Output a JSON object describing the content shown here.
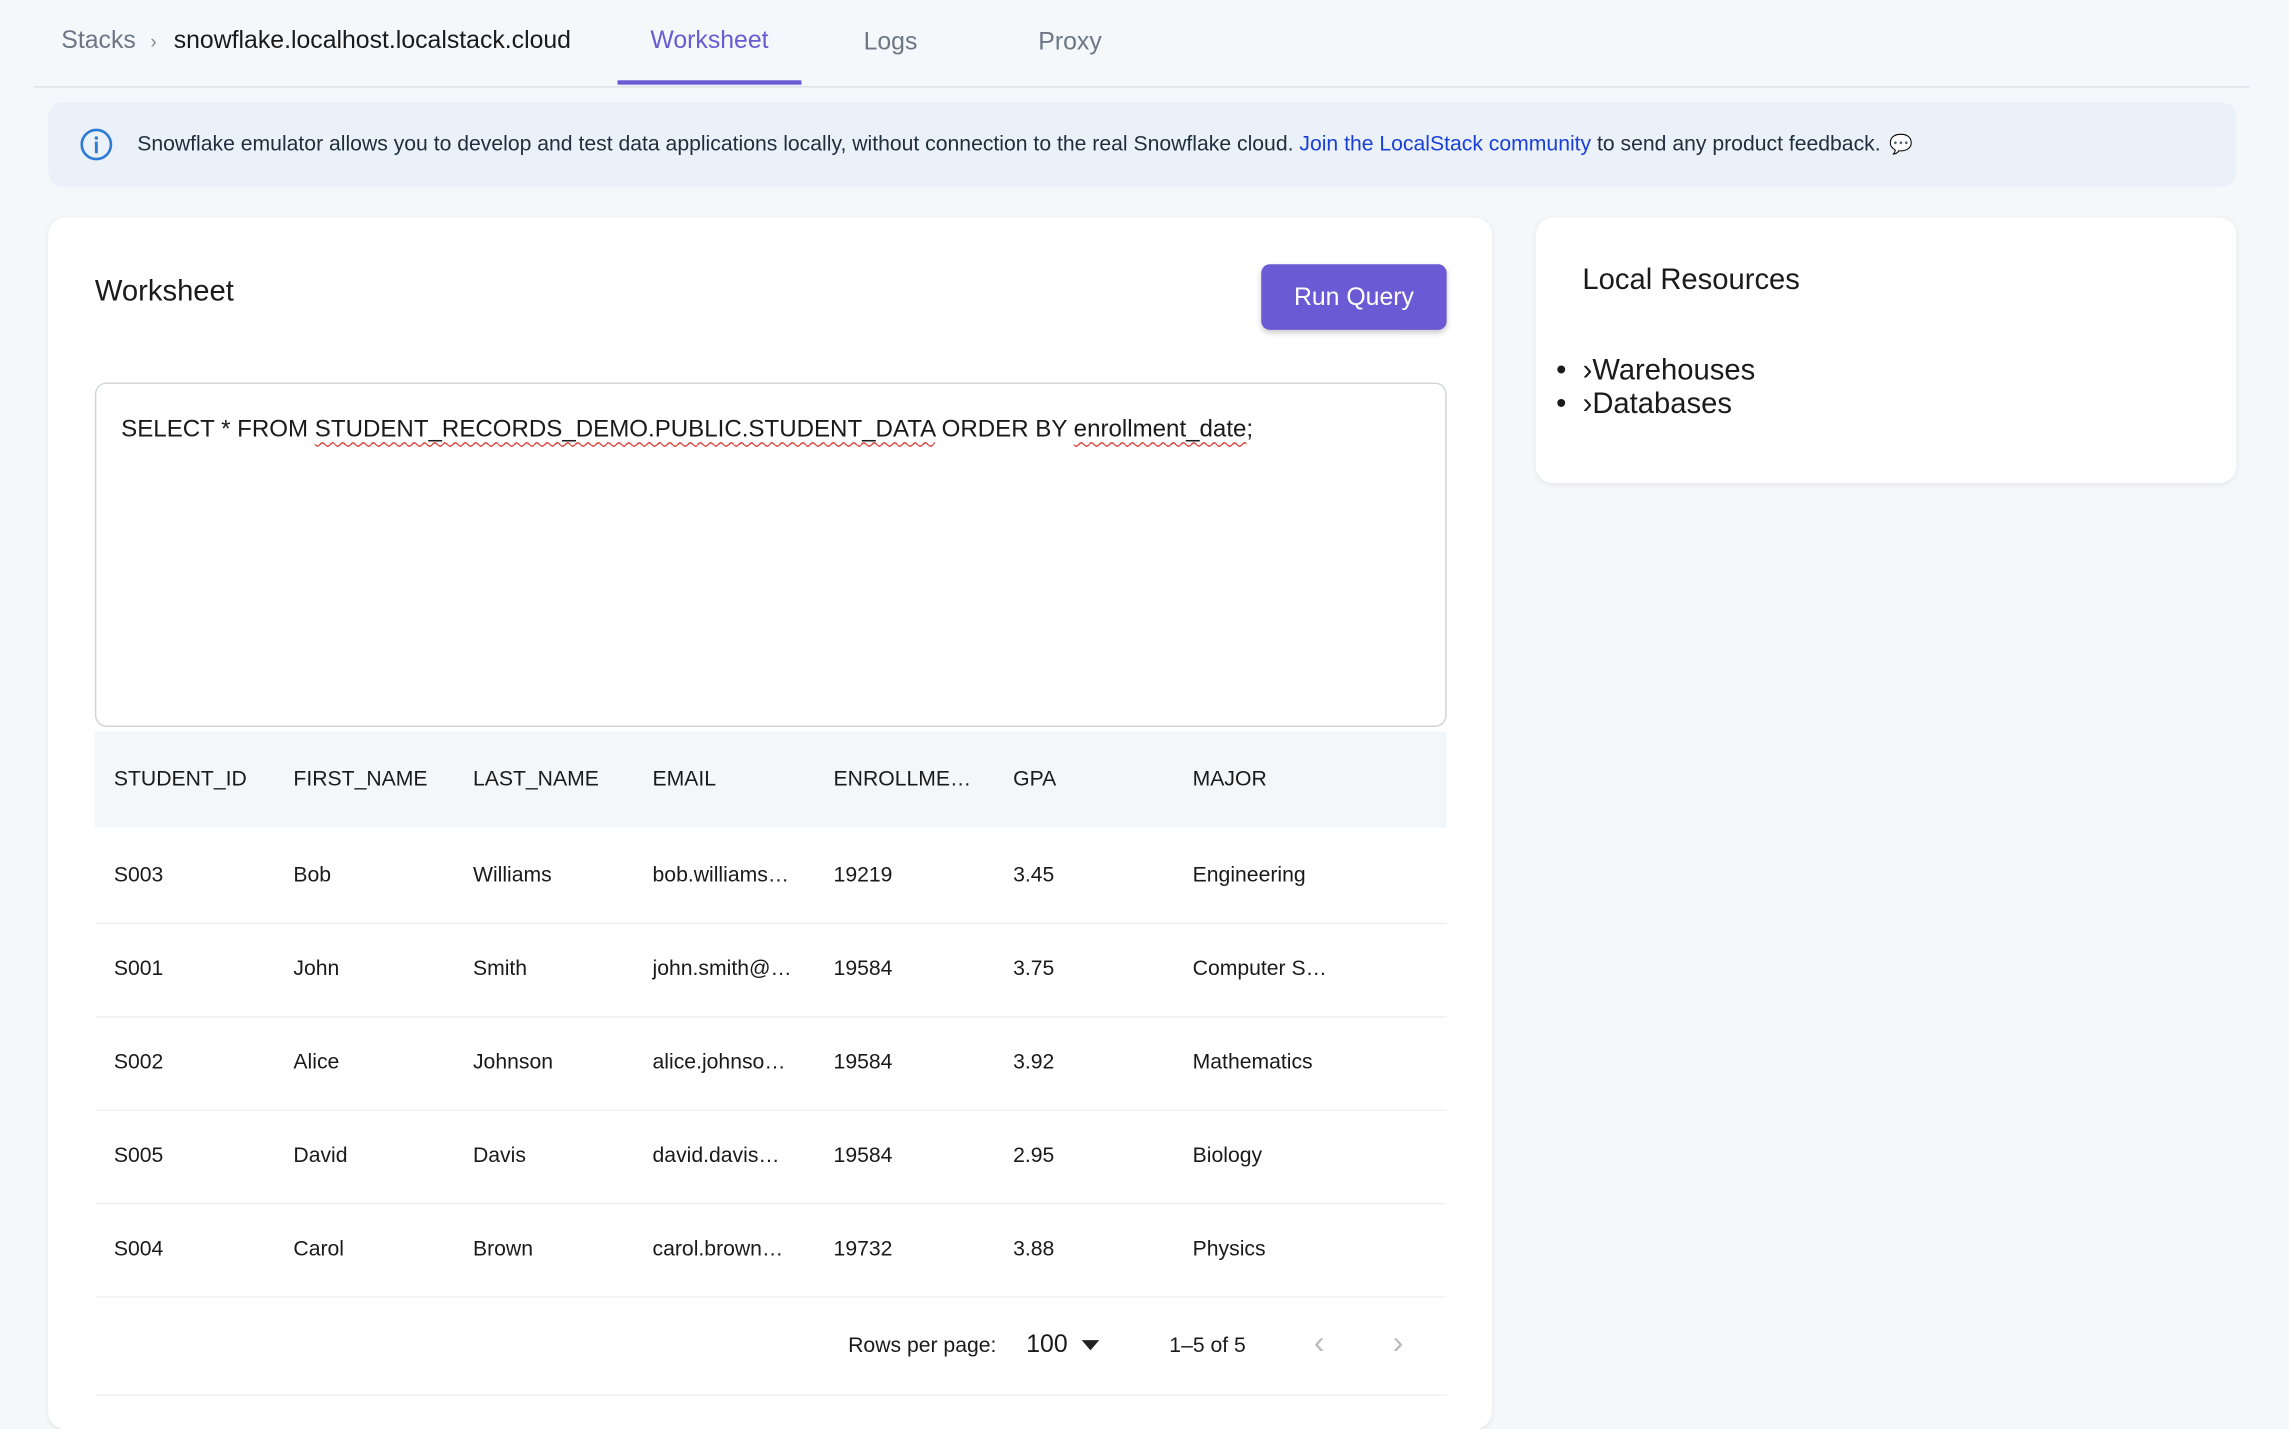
{
  "breadcrumb": {
    "root": "Stacks",
    "separator": "›",
    "current": "snowflake.localhost.localstack.cloud"
  },
  "tabs": [
    {
      "label": "Worksheet",
      "active": true
    },
    {
      "label": "Logs",
      "active": false
    },
    {
      "label": "Proxy",
      "active": false
    }
  ],
  "banner": {
    "icon": "info-icon",
    "text": "Snowflake emulator allows you to develop and test data applications locally, without connection to the real Snowflake cloud.",
    "link": "Join the LocalStack community",
    "suffix": "to send any product feedback.",
    "trailing_icon": "chat-bubble-icon"
  },
  "worksheet": {
    "title": "Worksheet",
    "run_label": "Run Query",
    "query": {
      "p1": "SELECT * FROM ",
      "p2": "STUDENT_RECORDS_DEMO.PUBLIC.STUDENT_DATA",
      "p3": " ORDER BY ",
      "p4": "enrollment_date",
      "p5": ";"
    },
    "columns": [
      "STUDENT_ID",
      "FIRST_NAME",
      "LAST_NAME",
      "EMAIL",
      "ENROLLME…",
      "GPA",
      "MAJOR"
    ],
    "rows": [
      [
        "S003",
        "Bob",
        "Williams",
        "bob.williams…",
        "19219",
        "3.45",
        "Engineering"
      ],
      [
        "S001",
        "John",
        "Smith",
        "john.smith@…",
        "19584",
        "3.75",
        "Computer S…"
      ],
      [
        "S002",
        "Alice",
        "Johnson",
        "alice.johnso…",
        "19584",
        "3.92",
        "Mathematics"
      ],
      [
        "S005",
        "David",
        "Davis",
        "david.davis…",
        "19584",
        "2.95",
        "Biology"
      ],
      [
        "S004",
        "Carol",
        "Brown",
        "carol.brown…",
        "19732",
        "3.88",
        "Physics"
      ]
    ],
    "pagination": {
      "rows_per_page_label": "Rows per page:",
      "rows_per_page": "100",
      "range": "1–5 of 5"
    }
  },
  "resources": {
    "title": "Local Resources",
    "items": [
      "Warehouses",
      "Databases"
    ]
  },
  "colors": {
    "accent": "#6a5ad4",
    "link": "#1a3fd6",
    "banner_bg": "#eaf1f8"
  }
}
